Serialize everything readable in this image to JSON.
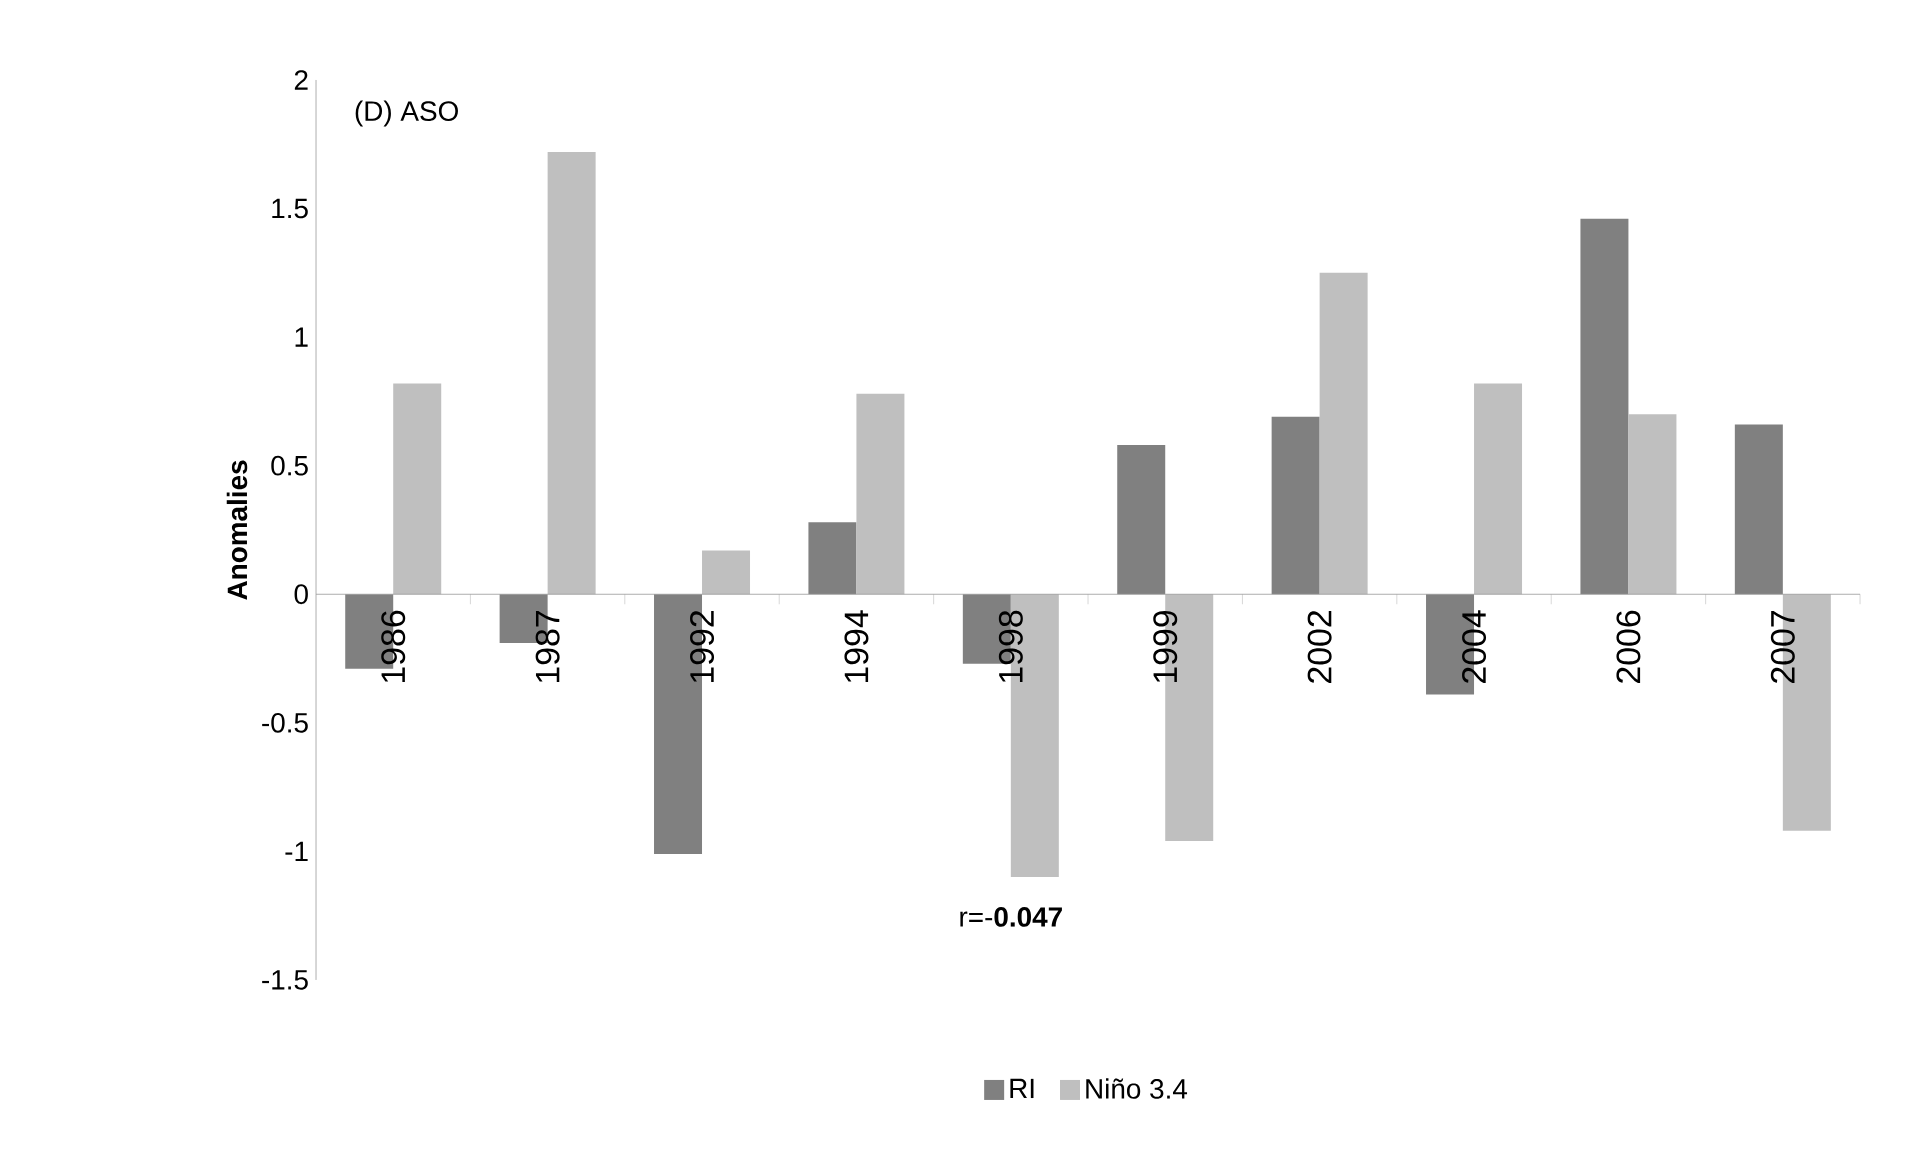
{
  "chart_data": {
    "type": "bar",
    "ylabel": "Anomalies",
    "categories": [
      "1986",
      "1987",
      "1992",
      "1994",
      "1998",
      "1999",
      "2002",
      "2004",
      "2006",
      "2007"
    ],
    "series": [
      {
        "name": "RI",
        "color": "#808080",
        "values": [
          -0.29,
          -0.19,
          -1.01,
          0.28,
          -0.27,
          0.58,
          0.69,
          -0.39,
          1.46,
          0.66
        ]
      },
      {
        "name": "Niño 3.4",
        "color": "#bfbfbf",
        "values": [
          0.82,
          1.72,
          0.17,
          0.78,
          -1.1,
          -0.96,
          1.25,
          0.82,
          0.7,
          -0.92
        ]
      }
    ],
    "ylim": [
      -1.5,
      2
    ],
    "yticks": [
      -1.5,
      -1,
      -0.5,
      0,
      0.5,
      1,
      1.5,
      2
    ],
    "annotations": [
      "(D) ASO",
      "r=-**0.047**"
    ],
    "legend": "bottom",
    "grid": false
  }
}
